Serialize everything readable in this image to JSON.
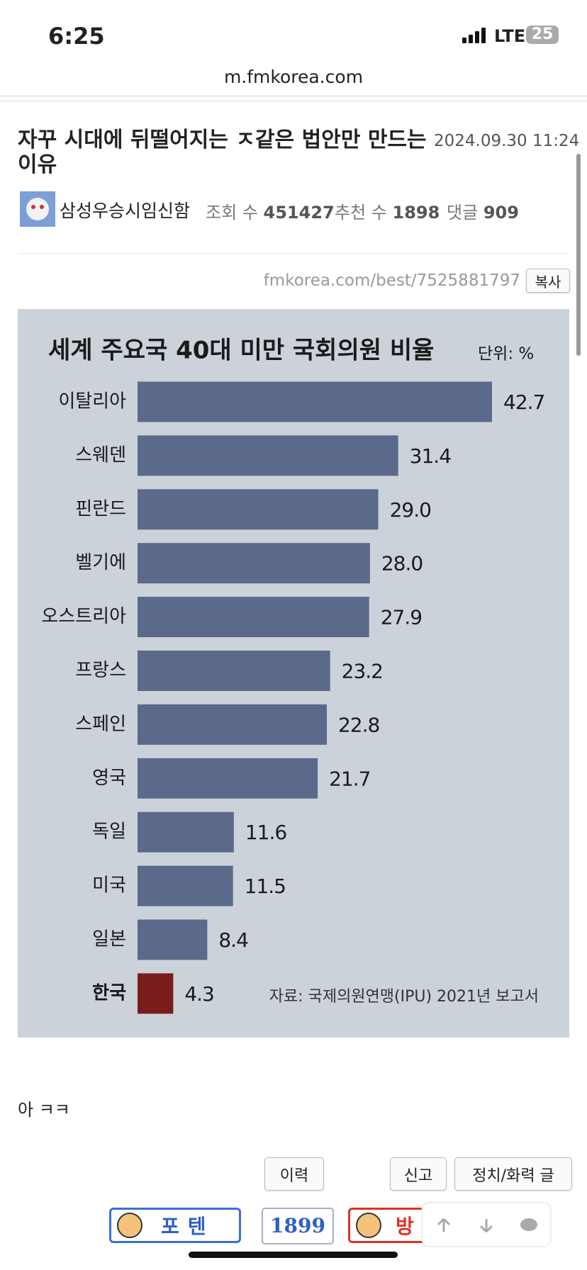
{
  "status_bar": {
    "time": "6:25",
    "network": "LTE",
    "battery": "25"
  },
  "address_bar": {
    "url": "m.fmkorea.com"
  },
  "post": {
    "title": "자꾸 시대에 뒤떨어지는 ㅈ같은 법안만 만드는 이유",
    "date": "2024.09.30 11:24",
    "author": "삼성우승시임신함",
    "views_label": "조회 수",
    "views": 451427,
    "likes_label": "추천 수",
    "likes": 1898,
    "comments_label": "댓글",
    "comments": 909
  },
  "share": {
    "link": "fmkorea.com/best/7525881797",
    "copy_button": "복사"
  },
  "chart_data": {
    "type": "bar",
    "orientation": "horizontal",
    "title": "세계 주요국 40대 미만 국회의원 비율",
    "unit": "단위: %",
    "source": "자료: 국제의원연맹(IPU) 2021년 보고서",
    "categories": [
      "이탈리아",
      "스웨덴",
      "핀란드",
      "벨기에",
      "오스트리아",
      "프랑스",
      "스페인",
      "영국",
      "독일",
      "미국",
      "일본",
      "한국"
    ],
    "values": [
      42.7,
      31.4,
      29.0,
      28.0,
      27.9,
      23.2,
      22.8,
      21.7,
      11.6,
      11.5,
      8.4,
      4.3
    ],
    "value_labels": [
      "42.7",
      "31.4",
      "29.0",
      "28.0",
      "27.9",
      "23.2",
      "22.8",
      "21.7",
      "11.6",
      "11.5",
      "8.4",
      "4.3"
    ],
    "colors": [
      "#5b6a8b",
      "#5b6a8b",
      "#5b6a8b",
      "#5b6a8b",
      "#5b6a8b",
      "#5b6a8b",
      "#5b6a8b",
      "#5b6a8b",
      "#5b6a8b",
      "#5b6a8b",
      "#5b6a8b",
      "#7a1c1c"
    ],
    "background": "#ccd2da"
  },
  "body": {
    "text": "아 ㅋㅋ"
  },
  "buttons": {
    "history": "이력",
    "report": "신고",
    "category": "정치/화력 글"
  },
  "vote": {
    "poten_label": "포텐",
    "count": 1899,
    "bang_label": "방"
  }
}
